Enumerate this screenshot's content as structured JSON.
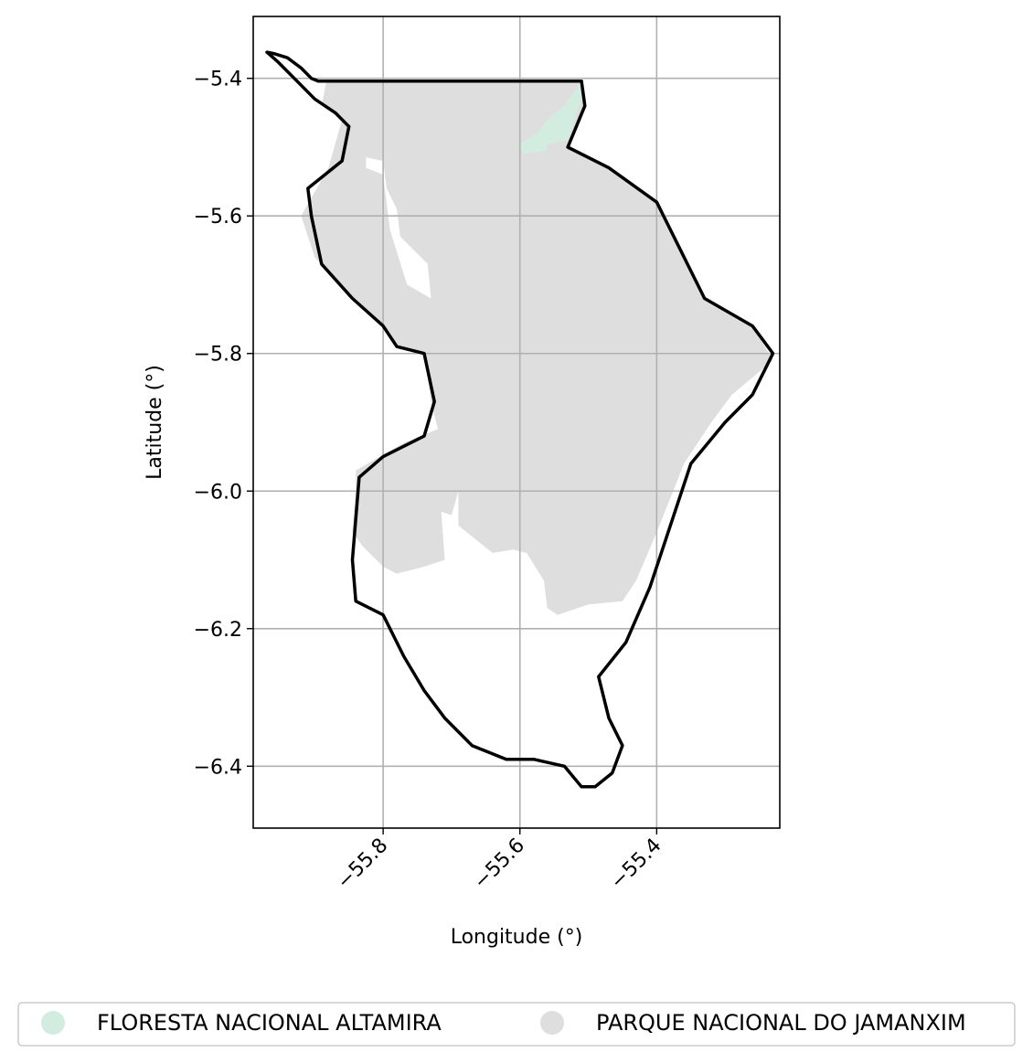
{
  "chart_data": {
    "type": "map",
    "xlabel": "Longitude (°)",
    "ylabel": "Latitude (°)",
    "xlim": [
      -55.99,
      -55.22
    ],
    "ylim": [
      -6.49,
      -5.31
    ],
    "x_ticks": [
      {
        "value": -55.8,
        "label": "−55.8"
      },
      {
        "value": -55.6,
        "label": "−55.6"
      },
      {
        "value": -55.4,
        "label": "−55.4"
      }
    ],
    "y_ticks": [
      {
        "value": -5.4,
        "label": "−5.4"
      },
      {
        "value": -5.6,
        "label": "−5.6"
      },
      {
        "value": -5.8,
        "label": "−5.8"
      },
      {
        "value": -6.0,
        "label": "−6.0"
      },
      {
        "value": -6.2,
        "label": "−6.2"
      },
      {
        "value": -6.4,
        "label": "−6.4"
      }
    ],
    "grid": true,
    "legend": {
      "placement": "bottom",
      "items": [
        {
          "label": "FLORESTA NACIONAL ALTAMIRA",
          "color": "#d3ece0"
        },
        {
          "label": "PARQUE NACIONAL DO JAMANXIM",
          "color": "#dedede"
        }
      ]
    },
    "colors": {
      "boundary": "#000000",
      "grid": "#b0b0b0",
      "park": "#dedede",
      "forest": "#d3ece0"
    },
    "layers": [
      {
        "name": "PARQUE NACIONAL DO JAMANXIM",
        "fill": "#dedede",
        "coords": [
          [
            -55.883,
            -5.404
          ],
          [
            -55.51,
            -5.404
          ],
          [
            -55.505,
            -5.44
          ],
          [
            -55.53,
            -5.5
          ],
          [
            -55.47,
            -5.53
          ],
          [
            -55.4,
            -5.58
          ],
          [
            -55.37,
            -5.64
          ],
          [
            -55.33,
            -5.72
          ],
          [
            -55.26,
            -5.76
          ],
          [
            -55.23,
            -5.81
          ],
          [
            -55.29,
            -5.86
          ],
          [
            -55.32,
            -5.9
          ],
          [
            -55.36,
            -5.96
          ],
          [
            -55.4,
            -6.06
          ],
          [
            -55.43,
            -6.13
          ],
          [
            -55.45,
            -6.16
          ],
          [
            -55.5,
            -6.165
          ],
          [
            -55.545,
            -6.18
          ],
          [
            -55.56,
            -6.17
          ],
          [
            -55.565,
            -6.13
          ],
          [
            -55.59,
            -6.09
          ],
          [
            -55.61,
            -6.085
          ],
          [
            -55.64,
            -6.09
          ],
          [
            -55.69,
            -6.05
          ],
          [
            -55.69,
            -6.0
          ],
          [
            -55.7,
            -6.035
          ],
          [
            -55.715,
            -6.03
          ],
          [
            -55.71,
            -6.1
          ],
          [
            -55.74,
            -6.11
          ],
          [
            -55.78,
            -6.12
          ],
          [
            -55.8,
            -6.11
          ],
          [
            -55.83,
            -6.08
          ],
          [
            -55.845,
            -6.06
          ],
          [
            -55.84,
            -6.0
          ],
          [
            -55.84,
            -5.97
          ],
          [
            -55.77,
            -5.93
          ],
          [
            -55.72,
            -5.91
          ],
          [
            -55.73,
            -5.87
          ],
          [
            -55.74,
            -5.8
          ],
          [
            -55.78,
            -5.79
          ],
          [
            -55.8,
            -5.76
          ],
          [
            -55.845,
            -5.72
          ],
          [
            -55.9,
            -5.66
          ],
          [
            -55.92,
            -5.6
          ],
          [
            -55.88,
            -5.53
          ],
          [
            -55.86,
            -5.46
          ],
          [
            -55.89,
            -5.44
          ]
        ]
      },
      {
        "name": "PARQUE NACIONAL DO JAMANXIM",
        "fill": "#ffffff",
        "coords": [
          [
            -55.825,
            -5.53
          ],
          [
            -55.8,
            -5.54
          ],
          [
            -55.79,
            -5.62
          ],
          [
            -55.765,
            -5.7
          ],
          [
            -55.73,
            -5.72
          ],
          [
            -55.735,
            -5.67
          ],
          [
            -55.775,
            -5.63
          ],
          [
            -55.78,
            -5.59
          ],
          [
            -55.795,
            -5.56
          ],
          [
            -55.8,
            -5.52
          ],
          [
            -55.825,
            -5.515
          ]
        ]
      },
      {
        "name": "FLORESTA NACIONAL ALTAMIRA",
        "fill": "#d3ece0",
        "coords": [
          [
            -55.51,
            -5.405
          ],
          [
            -55.51,
            -5.43
          ],
          [
            -55.53,
            -5.49
          ],
          [
            -55.56,
            -5.495
          ],
          [
            -55.56,
            -5.505
          ],
          [
            -55.595,
            -5.51
          ],
          [
            -55.6,
            -5.495
          ],
          [
            -55.575,
            -5.48
          ],
          [
            -55.56,
            -5.46
          ],
          [
            -55.535,
            -5.44
          ]
        ]
      },
      {
        "name": "boundary",
        "stroke": "#000000",
        "coords": [
          [
            -55.96,
            -5.364
          ],
          [
            -55.94,
            -5.37
          ],
          [
            -55.92,
            -5.385
          ],
          [
            -55.905,
            -5.4
          ],
          [
            -55.895,
            -5.404
          ],
          [
            -55.51,
            -5.404
          ],
          [
            -55.505,
            -5.44
          ],
          [
            -55.53,
            -5.5
          ],
          [
            -55.47,
            -5.53
          ],
          [
            -55.4,
            -5.58
          ],
          [
            -55.37,
            -5.64
          ],
          [
            -55.33,
            -5.72
          ],
          [
            -55.26,
            -5.76
          ],
          [
            -55.23,
            -5.8
          ],
          [
            -55.26,
            -5.86
          ],
          [
            -55.3,
            -5.9
          ],
          [
            -55.35,
            -5.96
          ],
          [
            -55.41,
            -6.14
          ],
          [
            -55.445,
            -6.22
          ],
          [
            -55.485,
            -6.27
          ],
          [
            -55.47,
            -6.33
          ],
          [
            -55.45,
            -6.37
          ],
          [
            -55.465,
            -6.41
          ],
          [
            -55.49,
            -6.43
          ],
          [
            -55.51,
            -6.43
          ],
          [
            -55.535,
            -6.4
          ],
          [
            -55.58,
            -6.39
          ],
          [
            -55.62,
            -6.39
          ],
          [
            -55.67,
            -6.37
          ],
          [
            -55.71,
            -6.33
          ],
          [
            -55.74,
            -6.29
          ],
          [
            -55.77,
            -6.24
          ],
          [
            -55.8,
            -6.18
          ],
          [
            -55.84,
            -6.16
          ],
          [
            -55.845,
            -6.1
          ],
          [
            -55.84,
            -6.04
          ],
          [
            -55.835,
            -5.98
          ],
          [
            -55.8,
            -5.95
          ],
          [
            -55.74,
            -5.92
          ],
          [
            -55.725,
            -5.87
          ],
          [
            -55.74,
            -5.8
          ],
          [
            -55.78,
            -5.79
          ],
          [
            -55.8,
            -5.76
          ],
          [
            -55.845,
            -5.72
          ],
          [
            -55.89,
            -5.67
          ],
          [
            -55.905,
            -5.6
          ],
          [
            -55.91,
            -5.56
          ],
          [
            -55.86,
            -5.52
          ],
          [
            -55.85,
            -5.47
          ],
          [
            -55.87,
            -5.45
          ],
          [
            -55.9,
            -5.43
          ],
          [
            -55.93,
            -5.4
          ],
          [
            -55.955,
            -5.375
          ],
          [
            -55.97,
            -5.362
          ]
        ]
      }
    ]
  }
}
